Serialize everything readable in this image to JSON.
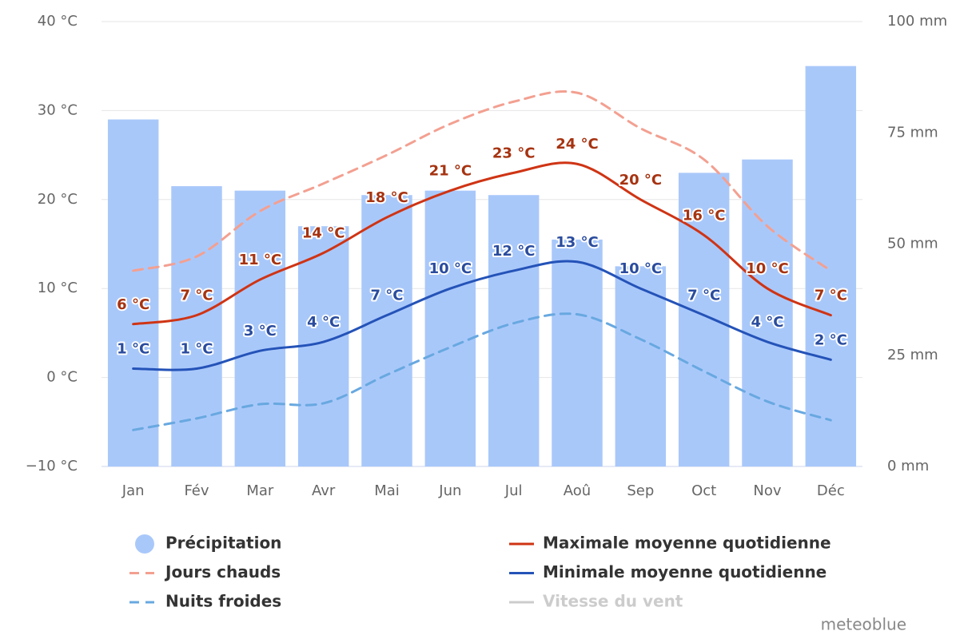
{
  "chart_data": {
    "type": "bar",
    "categories": [
      "Jan",
      "Fév",
      "Mar",
      "Avr",
      "Mai",
      "Jun",
      "Jul",
      "Aoû",
      "Sep",
      "Oct",
      "Nov",
      "Déc"
    ],
    "ylim": [
      -10,
      40
    ],
    "yticks": [
      {
        "value": -10,
        "label": "−10 °C"
      },
      {
        "value": 0,
        "label": "0 °C"
      },
      {
        "value": 10,
        "label": "10 °C"
      },
      {
        "value": 20,
        "label": "20 °C"
      },
      {
        "value": 30,
        "label": "30 °C"
      },
      {
        "value": 40,
        "label": "40 °C"
      }
    ],
    "y2lim": [
      0,
      100
    ],
    "y2ticks": [
      {
        "value": 0,
        "label": "0 mm"
      },
      {
        "value": 25,
        "label": "25 mm"
      },
      {
        "value": 50,
        "label": "50 mm"
      },
      {
        "value": 75,
        "label": "75 mm"
      },
      {
        "value": 100,
        "label": "100 mm"
      }
    ],
    "grid": true,
    "series": [
      {
        "name": "Précipitation",
        "type": "bar",
        "axis": "y2",
        "color": "#a9c8fa",
        "values": [
          78,
          63,
          62,
          54,
          61,
          62,
          61,
          51,
          45,
          66,
          69,
          90
        ]
      },
      {
        "name": "Jours chauds",
        "type": "line",
        "dash": true,
        "color": "#f3a091",
        "values": [
          12,
          13.6,
          18.7,
          21.8,
          25,
          28.5,
          31,
          32,
          28,
          24.5,
          17,
          12
        ]
      },
      {
        "name": "Nuits froides",
        "type": "line",
        "dash": true,
        "color": "#68a8e0",
        "values": [
          -5.9,
          -4.6,
          -3,
          -2.9,
          0.3,
          3.4,
          6.1,
          7.1,
          4.3,
          0.7,
          -2.7,
          -4.8
        ]
      },
      {
        "name": "Maximale moyenne quotidienne",
        "type": "line",
        "color": "#cf3414",
        "label_color": "#a63311",
        "values": [
          6,
          7,
          11,
          14,
          18,
          21,
          23,
          24,
          20,
          16,
          10,
          7
        ],
        "value_labels": [
          "6 °C",
          "7 °C",
          "11 °C",
          "14 °C",
          "18 °C",
          "21 °C",
          "23 °C",
          "24 °C",
          "20 °C",
          "16 °C",
          "10 °C",
          "7 °C"
        ]
      },
      {
        "name": "Minimale moyenne quotidienne",
        "type": "line",
        "color": "#2453b8",
        "label_color": "#2a4c9e",
        "values": [
          1,
          1,
          3,
          4,
          7,
          10,
          12,
          13,
          10,
          7,
          4,
          2
        ],
        "value_labels": [
          "1 °C",
          "1 °C",
          "3 °C",
          "4 °C",
          "7 °C",
          "10 °C",
          "12 °C",
          "13 °C",
          "10 °C",
          "7 °C",
          "4 °C",
          "2 °C"
        ]
      },
      {
        "name": "Vitesse du vent",
        "type": "line",
        "visible": false,
        "color": "#cccccc"
      }
    ],
    "credit": "meteoblue"
  }
}
